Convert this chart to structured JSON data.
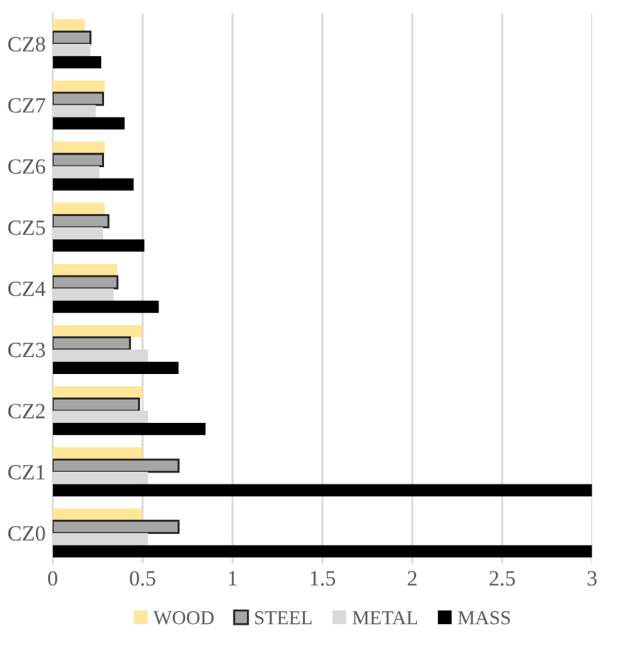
{
  "chart_data": {
    "type": "bar",
    "orientation": "horizontal",
    "categories": [
      "CZ8",
      "CZ7",
      "CZ6",
      "CZ5",
      "CZ4",
      "CZ3",
      "CZ2",
      "CZ1",
      "CZ0"
    ],
    "series": [
      {
        "name": "WOOD",
        "color": "#ffe699",
        "values": [
          0.18,
          0.29,
          0.29,
          0.29,
          0.36,
          0.5,
          0.5,
          0.5,
          0.5
        ]
      },
      {
        "name": "STEEL",
        "color": "#a6a6a6",
        "values": [
          0.21,
          0.28,
          0.28,
          0.31,
          0.36,
          0.43,
          0.48,
          0.7,
          0.7
        ]
      },
      {
        "name": "METAL",
        "color": "#d9d9d9",
        "values": [
          0.21,
          0.24,
          0.26,
          0.28,
          0.34,
          0.53,
          0.53,
          0.53,
          0.53
        ]
      },
      {
        "name": "MASS",
        "color": "#000000",
        "values": [
          0.27,
          0.4,
          0.45,
          0.51,
          0.59,
          0.7,
          0.85,
          3,
          3
        ]
      }
    ],
    "xlim": [
      0,
      3
    ],
    "xticks": [
      0,
      0.5,
      1,
      1.5,
      2,
      2.5,
      3
    ],
    "grid": "x",
    "legend": "bottom"
  }
}
